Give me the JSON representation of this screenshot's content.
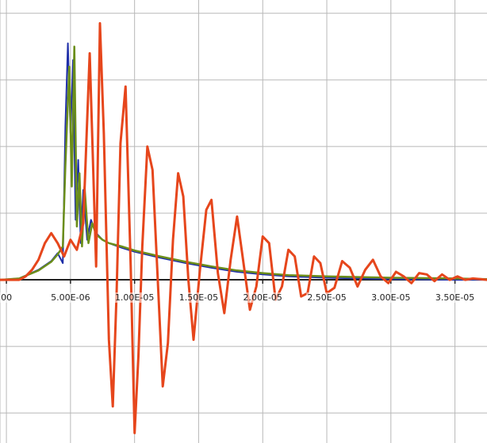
{
  "chart_data": {
    "type": "line",
    "title": "",
    "xlabel": "",
    "ylabel": "",
    "xlim": [
      -5e-07,
      3.75e-05
    ],
    "ylim": [
      -2.45,
      4.2
    ],
    "grid": true,
    "legend": "none",
    "x_tick_values": [
      0,
      5e-06,
      1e-05,
      1.5e-05,
      2e-05,
      2.5e-05,
      3e-05,
      3.5e-05
    ],
    "x_tick_labels": [
      "00",
      "5.00E-06",
      "1.00E-05",
      "1.50E-05",
      "2.00E-05",
      "2.50E-05",
      "3.00E-05",
      "3.50E-05"
    ],
    "y_gridlines": [
      4,
      3,
      2,
      1,
      0,
      -1,
      -2
    ],
    "series": [
      {
        "color": "#1f2fa8",
        "x": [
          -5e-07,
          1e-06,
          2.5e-06,
          3.5e-06,
          4e-06,
          4.4e-06,
          4.6e-06,
          4.8e-06,
          5e-06,
          5.2e-06,
          5.4e-06,
          5.6e-06,
          5.8e-06,
          6e-06,
          6.3e-06,
          6.6e-06,
          7e-06,
          7.5e-06,
          8e-06,
          9e-06,
          1e-05,
          1.2e-05,
          1.4e-05,
          1.6e-05,
          1.8e-05,
          2e-05,
          2.2e-05,
          2.5e-05,
          3e-05,
          3.5e-05,
          3.75e-05
        ],
        "y": [
          0,
          0.02,
          0.15,
          0.28,
          0.4,
          0.25,
          2.3,
          3.55,
          2.2,
          3.3,
          0.9,
          1.8,
          0.55,
          1.35,
          0.6,
          0.9,
          0.7,
          0.6,
          0.55,
          0.48,
          0.42,
          0.33,
          0.25,
          0.18,
          0.12,
          0.08,
          0.05,
          0.03,
          0.01,
          0.0,
          0.0
        ]
      },
      {
        "color": "#6b8e1a",
        "x": [
          -5e-07,
          1e-06,
          2.5e-06,
          3.5e-06,
          4e-06,
          4.4e-06,
          4.6e-06,
          4.9e-06,
          5.1e-06,
          5.3e-06,
          5.5e-06,
          5.7e-06,
          5.9e-06,
          6.1e-06,
          6.4e-06,
          6.7e-06,
          7e-06,
          7.5e-06,
          8e-06,
          9e-06,
          1e-05,
          1.2e-05,
          1.4e-05,
          1.6e-05,
          1.8e-05,
          2e-05,
          2.2e-05,
          2.5e-05,
          3e-05,
          3.5e-05,
          3.75e-05
        ],
        "y": [
          0,
          0.02,
          0.14,
          0.27,
          0.38,
          0.5,
          1.7,
          3.2,
          1.4,
          3.5,
          0.8,
          1.6,
          0.5,
          1.4,
          0.55,
          0.85,
          0.68,
          0.6,
          0.55,
          0.5,
          0.44,
          0.35,
          0.27,
          0.2,
          0.14,
          0.1,
          0.07,
          0.05,
          0.03,
          0.02,
          0.01
        ]
      },
      {
        "color": "#e6461c",
        "x": [
          -5e-07,
          5e-07,
          1e-06,
          1.5e-06,
          2e-06,
          2.5e-06,
          3e-06,
          3.5e-06,
          4e-06,
          4.5e-06,
          5e-06,
          5.5e-06,
          6e-06,
          6.5e-06,
          7e-06,
          7.3e-06,
          7.6e-06,
          8e-06,
          8.3e-06,
          8.6e-06,
          8.9e-06,
          9.3e-06,
          9.7e-06,
          1e-05,
          1.03e-05,
          1.06e-05,
          1.1e-05,
          1.14e-05,
          1.18e-05,
          1.22e-05,
          1.26e-05,
          1.3e-05,
          1.34e-05,
          1.38e-05,
          1.42e-05,
          1.46e-05,
          1.51e-05,
          1.56e-05,
          1.6e-05,
          1.65e-05,
          1.7e-05,
          1.75e-05,
          1.8e-05,
          1.85e-05,
          1.9e-05,
          1.95e-05,
          2e-05,
          2.05e-05,
          2.1e-05,
          2.15e-05,
          2.2e-05,
          2.25e-05,
          2.3e-05,
          2.35e-05,
          2.4e-05,
          2.45e-05,
          2.5e-05,
          2.56e-05,
          2.62e-05,
          2.68e-05,
          2.74e-05,
          2.8e-05,
          2.86e-05,
          2.92e-05,
          2.98e-05,
          3.04e-05,
          3.1e-05,
          3.16e-05,
          3.22e-05,
          3.28e-05,
          3.34e-05,
          3.4e-05,
          3.46e-05,
          3.52e-05,
          3.58e-05,
          3.64e-05,
          3.7e-05,
          3.75e-05
        ],
        "y": [
          0,
          0,
          0,
          0.05,
          0.15,
          0.3,
          0.55,
          0.7,
          0.55,
          0.35,
          0.6,
          0.45,
          0.85,
          3.4,
          0.2,
          3.85,
          2.2,
          -0.9,
          -1.9,
          -0.2,
          2.05,
          2.9,
          0.2,
          -2.3,
          -1.15,
          0.5,
          2.0,
          1.65,
          0.05,
          -1.6,
          -0.95,
          0.6,
          1.6,
          1.25,
          0.0,
          -0.9,
          0.15,
          1.05,
          1.2,
          0.1,
          -0.5,
          0.3,
          0.95,
          0.25,
          -0.45,
          -0.1,
          0.65,
          0.55,
          -0.3,
          -0.1,
          0.45,
          0.35,
          -0.25,
          -0.2,
          0.35,
          0.25,
          -0.2,
          -0.12,
          0.28,
          0.18,
          -0.1,
          0.15,
          0.3,
          0.05,
          -0.05,
          0.12,
          0.05,
          -0.05,
          0.1,
          0.08,
          -0.02,
          0.08,
          0.0,
          0.05,
          0.0,
          0.02,
          0.01,
          0.0
        ]
      }
    ]
  }
}
